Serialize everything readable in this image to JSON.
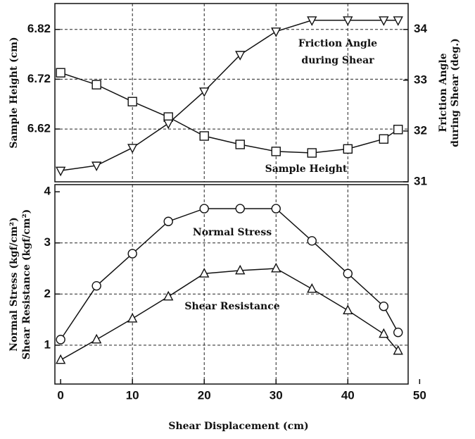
{
  "chart_data": [
    {
      "type": "line",
      "ylabel": "Sample Height (cm)",
      "y2label": [
        "Friction Angle",
        "during Shear (deg.)"
      ],
      "annotations": [
        [
          "Friction Angle",
          "during Shear"
        ],
        [
          "Sample Height"
        ]
      ],
      "x": [
        0,
        5,
        10,
        15,
        20,
        25,
        30,
        35,
        40,
        45,
        47
      ],
      "xlim": [
        -0.8,
        48.4
      ],
      "xgrid": [
        10,
        20,
        30,
        40
      ],
      "ylim": [
        6.514,
        6.872
      ],
      "yticks": [
        6.62,
        6.72,
        6.82
      ],
      "y2lim": [
        31,
        34.51
      ],
      "y2ticks": [
        31,
        32,
        33,
        34
      ],
      "ygrid": [
        6.62,
        6.72,
        6.82
      ],
      "series": [
        {
          "color": "#111111",
          "marker": "square",
          "values": [
            6.733,
            6.709,
            6.675,
            6.644,
            6.606,
            6.589,
            6.575,
            6.572,
            6.58,
            6.6,
            6.619
          ]
        },
        {
          "color": "#111111",
          "marker": "triangle-down",
          "axis": "y2",
          "values": [
            31.22,
            31.32,
            31.67,
            32.15,
            32.78,
            33.5,
            33.96,
            34.18,
            34.18,
            34.18,
            34.18
          ]
        }
      ]
    },
    {
      "type": "line",
      "ylabel": [
        "Normal Stress (kgf/cm²)",
        "Shear Resistance (kgf/cm²)"
      ],
      "xlabel": "Shear Displacement (cm)",
      "annotations": [
        [
          "Normal Stress"
        ],
        [
          "Shear Resistance"
        ]
      ],
      "x": [
        0,
        5,
        10,
        15,
        20,
        25,
        30,
        35,
        40,
        45,
        47
      ],
      "xlim": [
        -0.8,
        48.4
      ],
      "xticks": [
        0,
        10,
        20,
        30,
        40,
        50
      ],
      "xgrid": [
        10,
        20,
        30,
        40
      ],
      "ylim": [
        0.24,
        4.14
      ],
      "yticks": [
        1,
        2,
        3,
        4
      ],
      "ygrid": [
        1,
        2,
        3
      ],
      "series": [
        {
          "color": "#111111",
          "marker": "circle",
          "values": [
            1.11,
            2.16,
            2.79,
            3.42,
            3.67,
            3.67,
            3.67,
            3.04,
            2.4,
            1.76,
            1.25
          ]
        },
        {
          "color": "#111111",
          "marker": "triangle-up",
          "values": [
            0.71,
            1.11,
            1.52,
            1.95,
            2.4,
            2.46,
            2.5,
            2.1,
            1.68,
            1.22,
            0.89
          ]
        }
      ]
    }
  ]
}
